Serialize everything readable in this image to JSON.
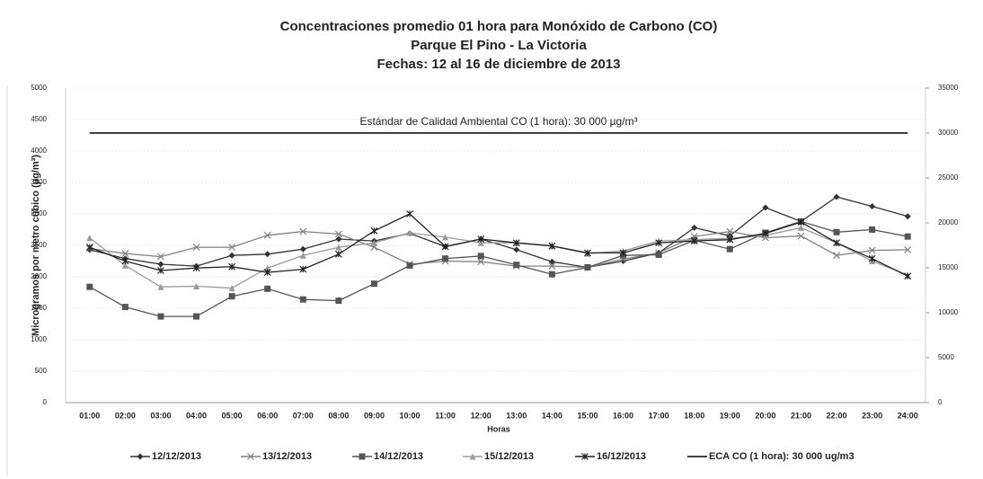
{
  "chart_data": {
    "type": "line",
    "title": [
      "Concentraciones promedio 01 hora para Monóxido de Carbono (CO)",
      "Parque El Pino -  La Victoria",
      "Fechas: 12 al 16 de diciembre de 2013"
    ],
    "x_label": "Horas",
    "y_label": "Microgramos por metro cúbico (µg/m³)",
    "annotation": "Estándar de Calidad Ambiental  CO (1 hora): 30 000 µg/m³",
    "categories": [
      "01:00",
      "02:00",
      "03:00",
      "04:00",
      "05:00",
      "06:00",
      "07:00",
      "08:00",
      "09:00",
      "10:00",
      "11:00",
      "12:00",
      "13:00",
      "14:00",
      "15:00",
      "16:00",
      "17:00",
      "18:00",
      "19:00",
      "20:00",
      "21:00",
      "22:00",
      "23:00",
      "24:00"
    ],
    "ylim": [
      0,
      5000
    ],
    "yticks": [
      0,
      500,
      1000,
      1500,
      2000,
      2500,
      3000,
      3500,
      4000,
      4500,
      5000
    ],
    "y2lim": [
      0,
      35000
    ],
    "y2ticks": [
      0,
      5000,
      10000,
      15000,
      20000,
      25000,
      30000,
      35000
    ],
    "grid": true,
    "legend": "bottom",
    "series": [
      {
        "name": "12/12/2013",
        "color": "#333333",
        "marker": "diamond",
        "values": [
          2430,
          2290,
          2200,
          2170,
          2340,
          2360,
          2440,
          2600,
          2570,
          2690,
          2480,
          2600,
          2430,
          2240,
          2150,
          2250,
          2380,
          2780,
          2650,
          3100,
          2880,
          3270,
          3120,
          2960
        ]
      },
      {
        "name": "13/12/2013",
        "color": "#808080",
        "marker": "x",
        "values": [
          2450,
          2370,
          2320,
          2470,
          2470,
          2660,
          2720,
          2680,
          2470,
          2200,
          2250,
          2240,
          2170,
          2170,
          2150,
          2280,
          2380,
          2640,
          2720,
          2620,
          2650,
          2340,
          2420,
          2430
        ]
      },
      {
        "name": "14/12/2013",
        "color": "#555555",
        "marker": "square",
        "values": [
          1840,
          1520,
          1370,
          1370,
          1690,
          1810,
          1640,
          1620,
          1890,
          2180,
          2290,
          2330,
          2190,
          2040,
          2150,
          2340,
          2350,
          2580,
          2440,
          2700,
          2880,
          2710,
          2750,
          2640
        ]
      },
      {
        "name": "15/12/2013",
        "color": "#9a9a9a",
        "marker": "triangle",
        "values": [
          2620,
          2180,
          1840,
          1850,
          1820,
          2140,
          2340,
          2470,
          2540,
          2700,
          2630,
          2540,
          2540,
          2490,
          2370,
          2410,
          2570,
          2590,
          2610,
          2660,
          2780,
          2540,
          2250,
          2030
        ]
      },
      {
        "name": "16/12/2013",
        "color": "#222222",
        "marker": "star",
        "values": [
          2470,
          2250,
          2100,
          2140,
          2160,
          2070,
          2120,
          2360,
          2730,
          3000,
          2480,
          2600,
          2540,
          2490,
          2380,
          2380,
          2540,
          2570,
          2590,
          2690,
          2870,
          2540,
          2290,
          2010
        ]
      },
      {
        "name": "ECA CO (1 hora): 30 000 ug/m3",
        "color": "#000000",
        "marker": "none",
        "axis": "y2",
        "values": [
          30000,
          30000,
          30000,
          30000,
          30000,
          30000,
          30000,
          30000,
          30000,
          30000,
          30000,
          30000,
          30000,
          30000,
          30000,
          30000,
          30000,
          30000,
          30000,
          30000,
          30000,
          30000,
          30000,
          30000
        ]
      }
    ]
  }
}
